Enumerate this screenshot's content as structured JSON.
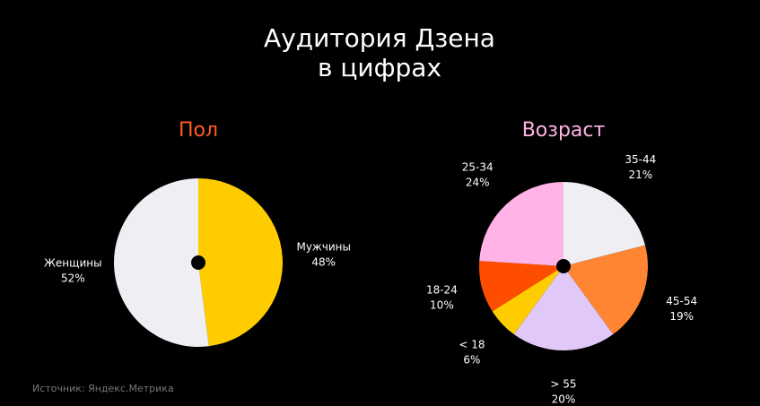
{
  "page_title": [
    "Аудитория Дзена",
    "в цифрах"
  ],
  "source": "Источник: Яндекс.Метрика",
  "chart_data": [
    {
      "type": "pie",
      "title": "Пол",
      "title_color": "#ff5a1f",
      "categories": [
        "Мужчины",
        "Женщины"
      ],
      "values": [
        48,
        52
      ],
      "value_labels": [
        "48%",
        "52%"
      ],
      "colors": [
        "#ffcc00",
        "#eeeef3"
      ]
    },
    {
      "type": "pie",
      "title": "Возраст",
      "title_color": "#ffb3e6",
      "categories": [
        "35-44",
        "45-54",
        "> 55",
        "< 18",
        "18-24",
        "25-34"
      ],
      "values": [
        21,
        19,
        20,
        6,
        10,
        24
      ],
      "value_labels": [
        "21%",
        "19%",
        "20%",
        "6%",
        "10%",
        "24%"
      ],
      "colors": [
        "#eeeef3",
        "#ff8533",
        "#e0c8f8",
        "#ffcc00",
        "#ff4d00",
        "#ffb3e6"
      ]
    }
  ]
}
